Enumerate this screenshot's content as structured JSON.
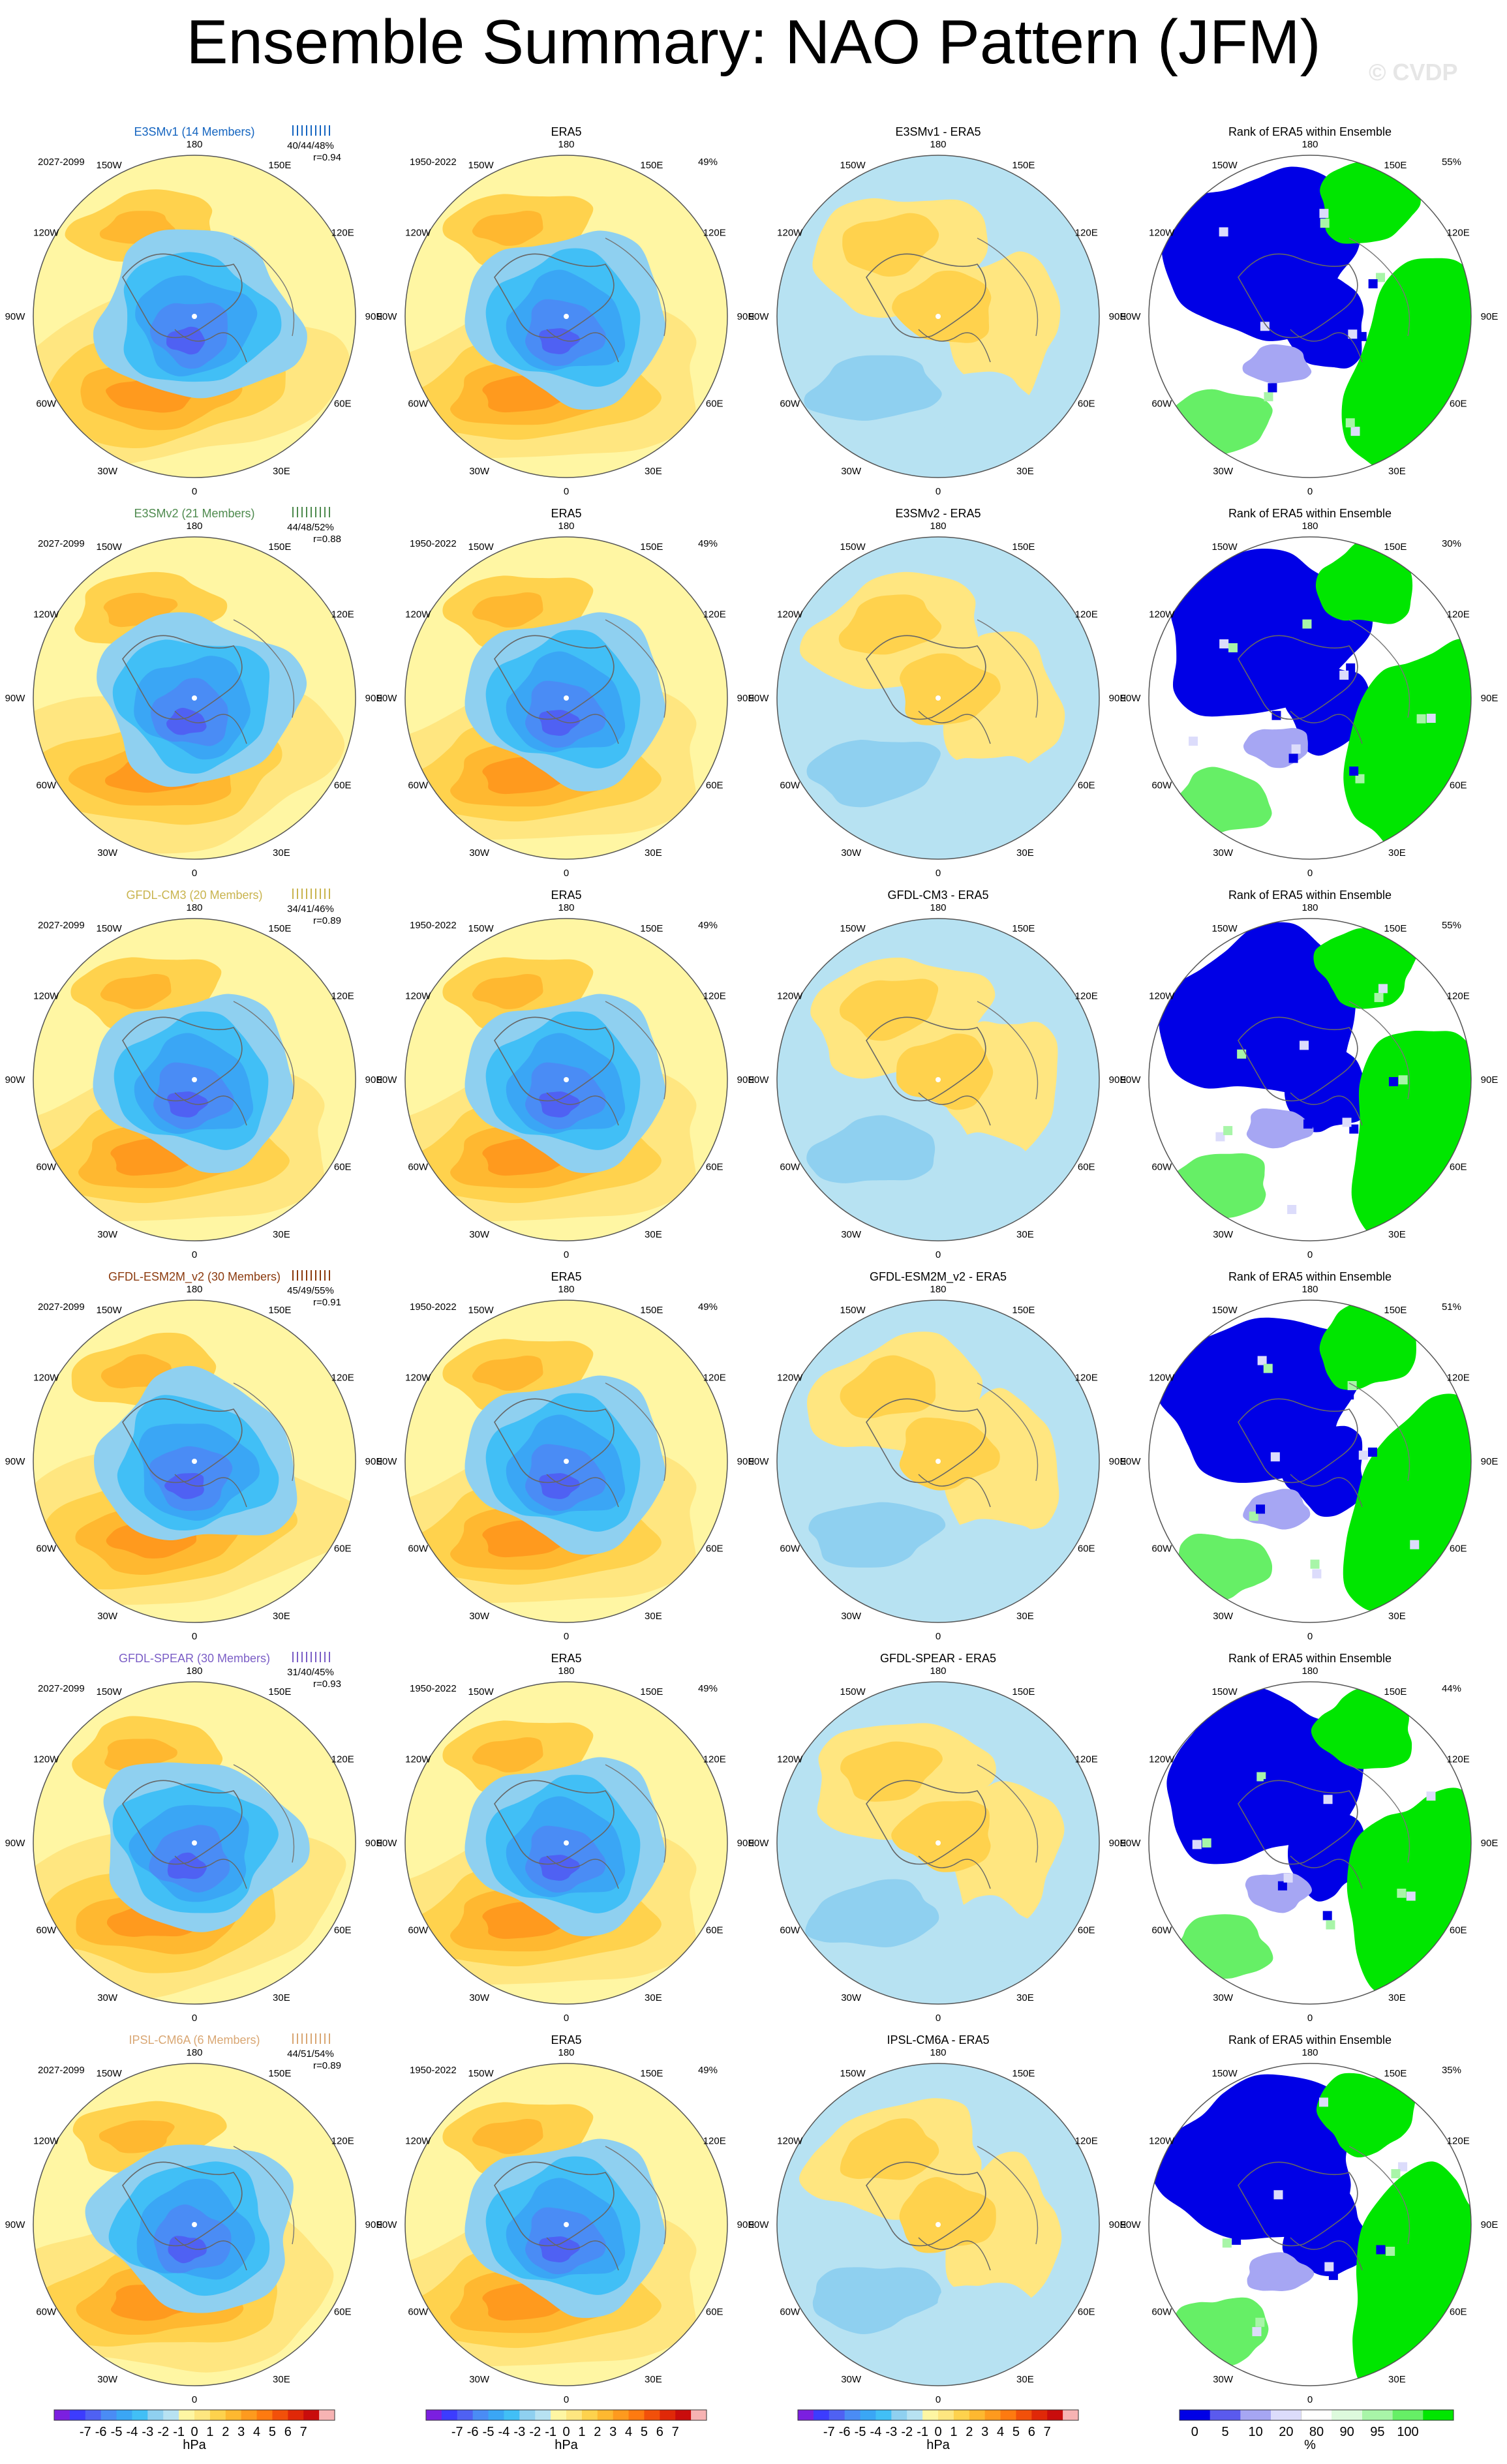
{
  "title": "Ensemble Summary: NAO Pattern (JFM)",
  "watermark": "© CVDP",
  "colors": {
    "diverging": [
      "#7b1fe0",
      "#3c3cff",
      "#4f61f3",
      "#4a8cf5",
      "#3aa6f5",
      "#41bff6",
      "#8fd0f0",
      "#b7e2f2",
      "#fff6a3",
      "#ffe680",
      "#ffd24d",
      "#ffb830",
      "#ff9a1e",
      "#ff7a10",
      "#f2500a",
      "#e02808",
      "#c90c0c",
      "#f7b3b3"
    ],
    "rank": [
      "#0000e6",
      "#5a5aee",
      "#a6a6f3",
      "#dcdcfb",
      "#ffffff",
      "#ddfadd",
      "#a8f5a8",
      "#66ef66",
      "#00e600"
    ],
    "e3smv1": "#1565c0",
    "e3smv2": "#4e8a4e",
    "gfdl_cm3": "#c9b44f",
    "gfdl_esm2m": "#8b3a0e",
    "gfdl_spear": "#7b5ec6",
    "ipsl": "#d9a774"
  },
  "labels": {
    "period_model": "2027-2099",
    "period_obs": "1950-2022",
    "obs_name": "ERA5",
    "rank_title": "Rank of ERA5 within Ensemble",
    "lon_labels": [
      "180",
      "150W",
      "150E",
      "120W",
      "120E",
      "90W",
      "90E",
      "60W",
      "60E",
      "30W",
      "30E",
      "0"
    ]
  },
  "chart_data": {
    "type": "heatmap",
    "rows": [
      {
        "model": "E3SMv1 (14 Members)",
        "color_key": "e3smv1",
        "stats_pct": "40/44/48%",
        "r": "r=0.94",
        "obs_pct": "49%",
        "diff_title": "E3SMv1 - ERA5",
        "rank_pct": "55%"
      },
      {
        "model": "E3SMv2 (21 Members)",
        "color_key": "e3smv2",
        "stats_pct": "44/48/52%",
        "r": "r=0.88",
        "obs_pct": "49%",
        "diff_title": "E3SMv2 - ERA5",
        "rank_pct": "30%"
      },
      {
        "model": "GFDL-CM3 (20 Members)",
        "color_key": "gfdl_cm3",
        "stats_pct": "34/41/46%",
        "r": "r=0.89",
        "obs_pct": "49%",
        "diff_title": "GFDL-CM3 - ERA5",
        "rank_pct": "55%"
      },
      {
        "model": "GFDL-ESM2M_v2 (30 Members)",
        "color_key": "gfdl_esm2m",
        "stats_pct": "45/49/55%",
        "r": "r=0.91",
        "obs_pct": "49%",
        "diff_title": "GFDL-ESM2M_v2 - ERA5",
        "rank_pct": "51%"
      },
      {
        "model": "GFDL-SPEAR (30 Members)",
        "color_key": "gfdl_spear",
        "stats_pct": "31/40/45%",
        "r": "r=0.93",
        "obs_pct": "49%",
        "diff_title": "GFDL-SPEAR - ERA5",
        "rank_pct": "44%"
      },
      {
        "model": "IPSL-CM6A (6 Members)",
        "color_key": "ipsl",
        "stats_pct": "44/51/54%",
        "r": "r=0.89",
        "obs_pct": "49%",
        "diff_title": "IPSL-CM6A - ERA5",
        "rank_pct": "35%"
      }
    ],
    "colorbar_hpa": {
      "ticks": [
        "-7",
        "-6",
        "-5",
        "-4",
        "-3",
        "-2",
        "-1",
        "0",
        "1",
        "2",
        "3",
        "4",
        "5",
        "6",
        "7"
      ],
      "unit": "hPa"
    },
    "colorbar_rank": {
      "ticks": [
        "0",
        "5",
        "10",
        "20",
        "80",
        "90",
        "95",
        "100"
      ],
      "unit": "%"
    }
  }
}
